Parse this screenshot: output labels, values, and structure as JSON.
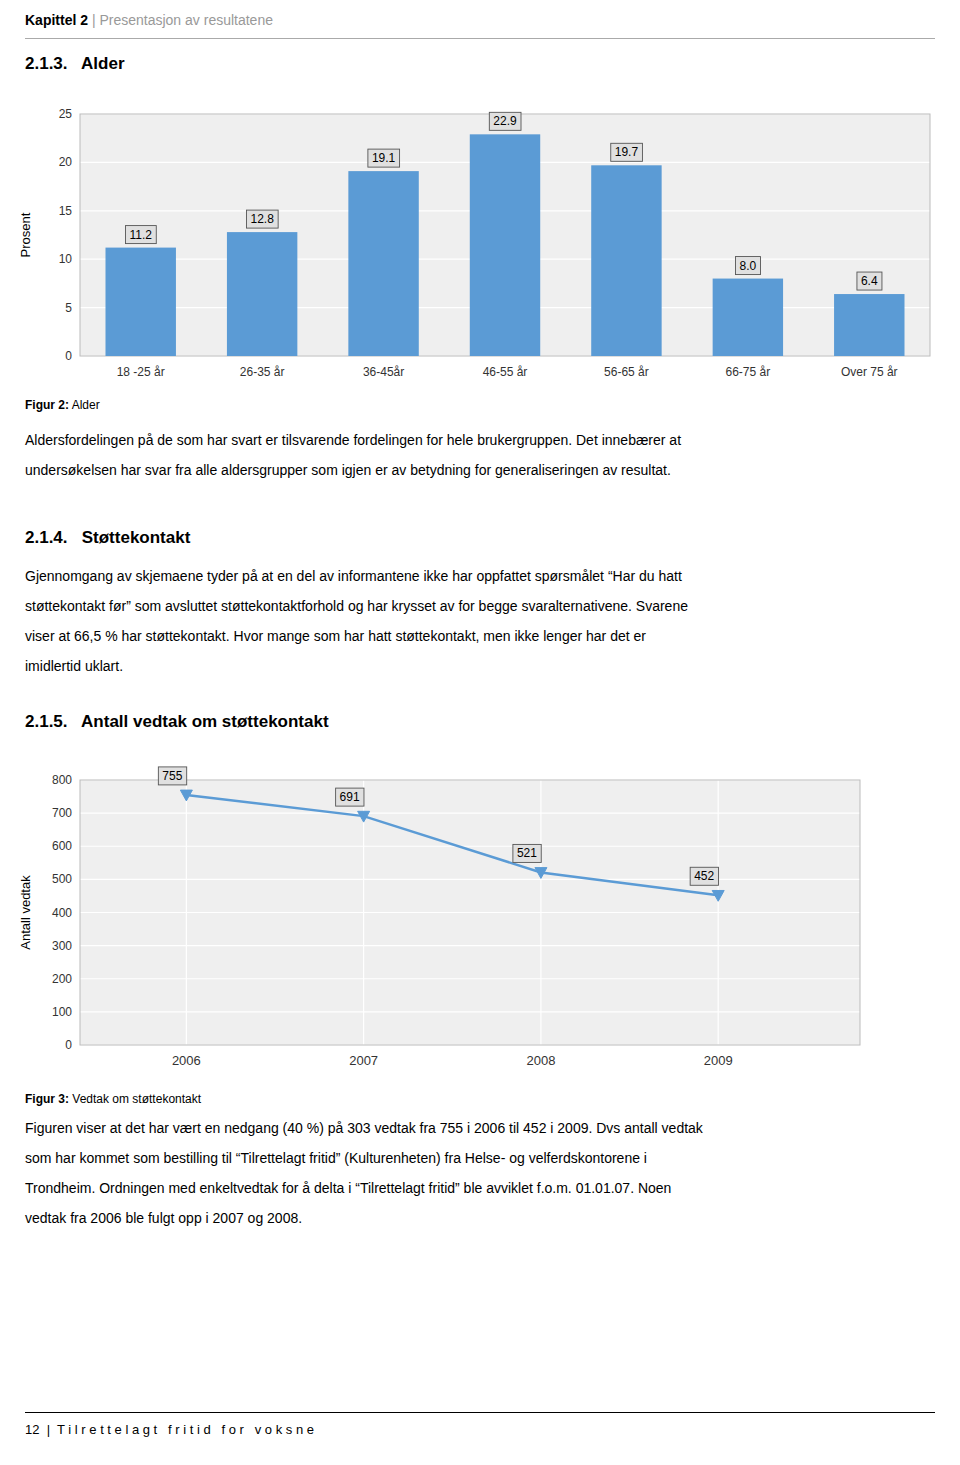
{
  "header_bold": "Kapittel 2",
  "header_light": " | Presentasjon av resultatene",
  "sections": [
    {
      "num": "2.1.3.",
      "title": "Alder"
    },
    {
      "num": "2.1.4.",
      "title": "Støttekontakt"
    },
    {
      "num": "2.1.5.",
      "title": "Antall vedtak om støttekontakt"
    }
  ],
  "captions": [
    {
      "bold": "Figur 2:",
      "rest": " Alder"
    },
    {
      "bold": "Figur 3:",
      "rest": " Vedtak om støttekontakt"
    }
  ],
  "paragraphs": [
    [
      "Aldersfordelingen på de som har svart er tilsvarende fordelingen for hele brukergruppen. Det innebærer at",
      "undersøkelsen har svar fra alle aldersgrupper som igjen er av betydning for generaliseringen av resultat."
    ],
    [
      "Gjennomgang av skjemaene tyder på at en del av informantene ikke har oppfattet spørsmålet “Har du hatt",
      "støttekontakt før” som avsluttet støttekontaktforhold og har krysset av for begge svaralternativene. Svarene",
      "viser at 66,5 % har støttekontakt. Hvor mange som har hatt støttekontakt, men ikke lenger har det er",
      "imidlertid uklart."
    ],
    [
      "Figuren viser at det har vært en nedgang (40 %) på 303 vedtak fra 755 i 2006 til 452 i 2009. Dvs antall vedtak",
      "som har kommet som bestilling til “Tilrettelagt fritid” (Kulturenheten) fra Helse- og velferdskontorene i",
      "Trondheim. Ordningen med enkeltvedtak for å delta i “Tilrettelagt fritid” ble avviklet f.o.m. 01.01.07. Noen",
      "vedtak fra 2006 ble fulgt opp i 2007 og 2008."
    ]
  ],
  "footer": "12  |  T i l r e t t e l a g t   f r i t i d   f o r   v o k s n e",
  "chart_data": [
    {
      "type": "bar",
      "categories": [
        "18 -25 år",
        "26-35 år",
        "36-45år",
        "46-55 år",
        "56-65 år",
        "66-75 år",
        "Over 75 år"
      ],
      "values": [
        11.2,
        12.8,
        19.1,
        22.9,
        19.7,
        8.0,
        6.4
      ],
      "value_labels": [
        "11.2",
        "12.8",
        "19.1",
        "22.9",
        "19.7",
        "8.0",
        "6.4"
      ],
      "color": "#5B9BD5",
      "y_label": "Prosent",
      "ylim": [
        0,
        25
      ],
      "yticks": [
        0,
        5,
        10,
        15,
        20,
        25
      ],
      "grid": true,
      "data_labels": true
    },
    {
      "type": "line",
      "x": [
        2006,
        2007,
        2008,
        2009
      ],
      "values": [
        755,
        691,
        521,
        452
      ],
      "color": "#5B9BD5",
      "marker": "triangle-down",
      "y_label": "Antall vedtak",
      "xlim": [
        2005.4,
        2009.8
      ],
      "xticks": [
        2006,
        2007,
        2008,
        2009
      ],
      "ylim": [
        0,
        800
      ],
      "yticks": [
        0,
        100,
        200,
        300,
        400,
        500,
        600,
        700,
        800
      ],
      "grid": true,
      "data_labels": true
    }
  ]
}
